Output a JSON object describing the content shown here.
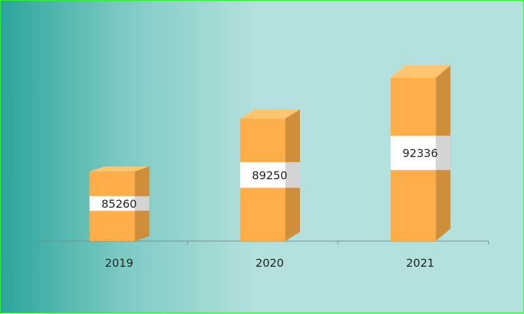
{
  "chart_data": {
    "type": "bar",
    "style": "3d-column",
    "categories": [
      "2019",
      "2020",
      "2021"
    ],
    "values": [
      85260,
      89250,
      92336
    ],
    "title": "",
    "xlabel": "",
    "ylabel": "",
    "ylim": [
      80000,
      93500
    ],
    "grid": false,
    "legend": "none",
    "colors": {
      "front": "#ffad48",
      "side": "#d08e3a",
      "top": "#ffc46e",
      "label_band": "#ffffff",
      "label_band_side": "#d4d4d4",
      "axis": "#7a8a88",
      "background_left": "#2aa59b",
      "background_right": "#b3e0dc",
      "border": "#33ee33"
    }
  }
}
